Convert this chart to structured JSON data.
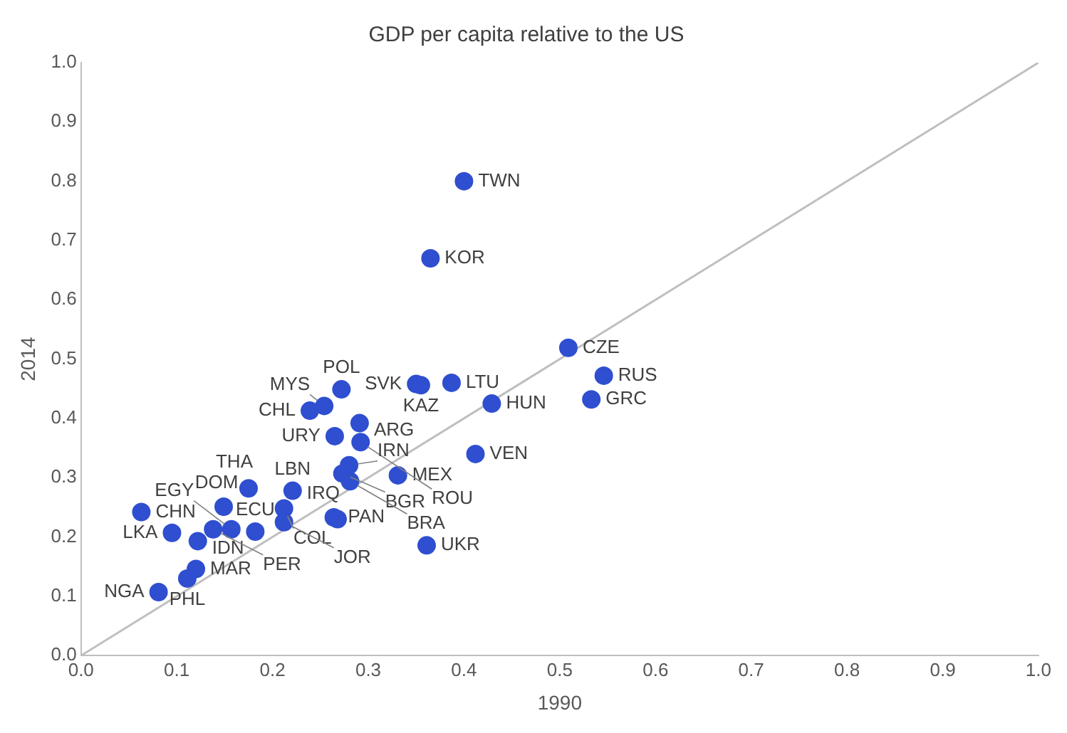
{
  "chart_data": {
    "type": "scatter",
    "title": "GDP per capita relative to the US",
    "xlabel": "1990",
    "ylabel": "2014",
    "marker": "circle",
    "grid": false,
    "legend": false,
    "xlim": [
      0,
      1
    ],
    "ylim": [
      0,
      1
    ],
    "xticks": [
      {
        "value": 0,
        "label": "0.0"
      },
      0.1,
      0.2,
      0.3,
      0.4,
      0.5,
      0.6,
      0.7,
      0.8,
      0.9,
      {
        "value": 1,
        "label": "1.0"
      }
    ],
    "yticks": [
      {
        "value": 0,
        "label": "0.0"
      },
      0.1,
      0.2,
      0.3,
      0.4,
      0.5,
      0.6,
      0.7,
      0.8,
      0.9,
      {
        "value": 1,
        "label": "1.0"
      }
    ],
    "series": [
      {
        "type": "line",
        "color": "#bfbfbf",
        "marker": "none",
        "x": [
          0,
          1
        ],
        "values": [
          0,
          1
        ]
      },
      {
        "type": "scatter",
        "color": "#2f4fd0",
        "x": [
          0.4,
          0.365,
          0.509,
          0.546,
          0.533,
          0.429,
          0.412,
          0.361,
          0.331,
          0.35,
          0.355,
          0.387,
          0.063,
          0.095,
          0.122,
          0.081,
          0.111,
          0.12,
          0.149,
          0.175,
          0.221,
          0.212,
          0.138,
          0.157,
          0.182,
          0.212,
          0.264,
          0.268,
          0.272,
          0.239,
          0.254,
          0.291,
          0.265,
          0.292,
          0.28,
          0.273,
          0.281
        ],
        "values": [
          0.8,
          0.67,
          0.519,
          0.472,
          0.432,
          0.425,
          0.34,
          0.186,
          0.304,
          0.458,
          0.456,
          0.46,
          0.242,
          0.207,
          0.193,
          0.107,
          0.13,
          0.146,
          0.251,
          0.282,
          0.278,
          0.248,
          0.213,
          0.213,
          0.209,
          0.225,
          0.233,
          0.23,
          0.449,
          0.413,
          0.421,
          0.392,
          0.37,
          0.36,
          0.321,
          0.307,
          0.294
        ]
      }
    ],
    "annotations": [
      {
        "text": "TWN",
        "x": 0.4,
        "y": 0.8
      },
      {
        "text": "KOR",
        "x": 0.365,
        "y": 0.67
      },
      {
        "text": "CZE",
        "x": 0.509,
        "y": 0.519
      },
      {
        "text": "RUS",
        "x": 0.546,
        "y": 0.472
      },
      {
        "text": "GRC",
        "x": 0.533,
        "y": 0.432
      },
      {
        "text": "HUN",
        "x": 0.429,
        "y": 0.425
      },
      {
        "text": "VEN",
        "x": 0.412,
        "y": 0.34
      },
      {
        "text": "UKR",
        "x": 0.361,
        "y": 0.186
      },
      {
        "text": "MEX",
        "x": 0.331,
        "y": 0.304
      },
      {
        "text": "SVK",
        "x": 0.35,
        "y": 0.458
      },
      {
        "text": "KAZ",
        "x": 0.355,
        "y": 0.456
      },
      {
        "text": "LTU",
        "x": 0.387,
        "y": 0.46
      },
      {
        "text": "CHN",
        "x": 0.063,
        "y": 0.242
      },
      {
        "text": "LKA",
        "x": 0.095,
        "y": 0.207
      },
      {
        "text": "IDN",
        "x": 0.122,
        "y": 0.193
      },
      {
        "text": "NGA",
        "x": 0.081,
        "y": 0.107
      },
      {
        "text": "PHL",
        "x": 0.111,
        "y": 0.13
      },
      {
        "text": "MAR",
        "x": 0.12,
        "y": 0.146
      },
      {
        "text": "DOM",
        "x": 0.149,
        "y": 0.251
      },
      {
        "text": "THA",
        "x": 0.175,
        "y": 0.282
      },
      {
        "text": "LBN",
        "x": 0.221,
        "y": 0.278
      },
      {
        "text": "COL",
        "x": 0.212,
        "y": 0.248
      },
      {
        "text": "PER",
        "x": 0.138,
        "y": 0.213
      },
      {
        "text": "EGY",
        "x": 0.157,
        "y": 0.213
      },
      {
        "text": "ECU",
        "x": 0.182,
        "y": 0.209
      },
      {
        "text": "JOR",
        "x": 0.212,
        "y": 0.225
      },
      {
        "text": "PAN",
        "x": 0.264,
        "y": 0.233
      },
      {
        "text": "IRQ",
        "x": 0.268,
        "y": 0.23
      },
      {
        "text": "POL",
        "x": 0.272,
        "y": 0.449
      },
      {
        "text": "CHL",
        "x": 0.239,
        "y": 0.413
      },
      {
        "text": "MYS",
        "x": 0.254,
        "y": 0.421
      },
      {
        "text": "ARG",
        "x": 0.291,
        "y": 0.392
      },
      {
        "text": "URY",
        "x": 0.265,
        "y": 0.37
      },
      {
        "text": "ROU",
        "x": 0.292,
        "y": 0.36
      },
      {
        "text": "IRN",
        "x": 0.28,
        "y": 0.321
      },
      {
        "text": "BGR",
        "x": 0.273,
        "y": 0.307
      },
      {
        "text": "BRA",
        "x": 0.281,
        "y": 0.294
      }
    ]
  }
}
